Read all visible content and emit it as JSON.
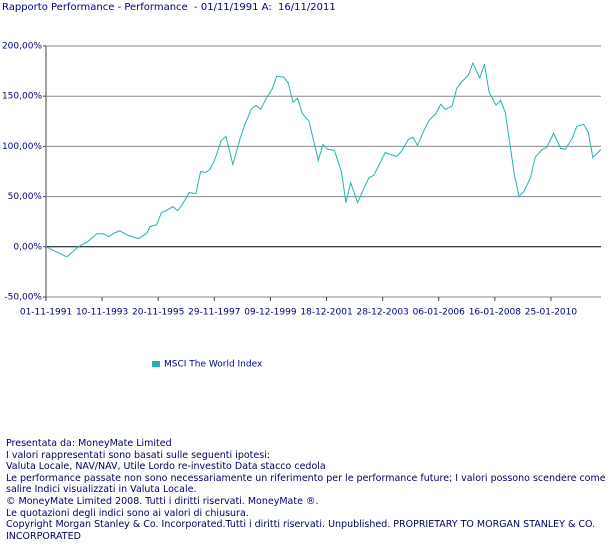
{
  "chart_data": {
    "type": "line",
    "title": "Rapporto Performance - Performance  - 01/11/1991 A:  16/11/2011",
    "x": [
      "1991-11-01",
      "1992-08-01",
      "1993-01-01",
      "1993-05-01",
      "1993-09-01",
      "1993-12-01",
      "1994-02-01",
      "1994-05-01",
      "1994-07-01",
      "1994-10-01",
      "1995-03-01",
      "1995-07-01",
      "1995-08-01",
      "1995-11-01",
      "1996-01-01",
      "1996-03-01",
      "1996-06-01",
      "1996-08-01",
      "1996-10-01",
      "1997-01-01",
      "1997-04-01",
      "1997-06-01",
      "1997-08-01",
      "1997-10-01",
      "1997-12-01",
      "1998-03-01",
      "1998-05-01",
      "1998-08-01",
      "1998-11-01",
      "1999-01-01",
      "1999-04-01",
      "1999-06-01",
      "1999-08-01",
      "1999-11-01",
      "2000-01-01",
      "2000-03-01",
      "2000-06-01",
      "2000-08-01",
      "2000-10-01",
      "2000-12-01",
      "2001-02-01",
      "2001-05-01",
      "2001-09-01",
      "2001-11-01",
      "2002-01-01",
      "2002-04-01",
      "2002-07-01",
      "2002-09-01",
      "2002-11-01",
      "2003-02-01",
      "2003-04-01",
      "2003-07-01",
      "2003-09-01",
      "2003-11-01",
      "2004-02-01",
      "2004-04-01",
      "2004-07-01",
      "2004-09-01",
      "2004-12-01",
      "2005-02-01",
      "2005-04-01",
      "2005-07-01",
      "2005-09-01",
      "2005-12-01",
      "2006-02-01",
      "2006-04-01",
      "2006-07-01",
      "2006-09-01",
      "2006-11-01",
      "2007-02-01",
      "2007-04-01",
      "2007-07-01",
      "2007-09-01",
      "2007-11-01",
      "2008-02-01",
      "2008-04-01",
      "2008-06-01",
      "2008-10-01",
      "2008-12-01",
      "2009-02-01",
      "2009-05-01",
      "2009-07-01",
      "2009-10-01",
      "2009-12-01",
      "2010-03-01",
      "2010-06-01",
      "2010-08-01",
      "2010-11-01",
      "2011-01-01",
      "2011-04-01",
      "2011-06-01",
      "2011-08-01",
      "2011-11-16"
    ],
    "series": [
      {
        "name": "MSCI The World Index",
        "color": "#22b2b2",
        "values": [
          0,
          -10,
          0,
          5,
          13,
          13,
          10,
          14,
          16,
          12,
          8,
          14,
          20,
          22,
          34,
          36,
          40,
          36,
          42,
          54,
          53,
          75,
          74,
          77,
          86,
          106,
          110,
          82,
          107,
          121,
          137,
          141,
          137,
          150,
          157,
          170,
          169,
          163,
          144,
          148,
          133,
          125,
          86,
          102,
          97,
          96,
          75,
          44,
          64,
          44,
          54,
          69,
          71,
          80,
          94,
          92,
          90,
          95,
          107,
          109,
          101,
          117,
          126,
          133,
          142,
          137,
          140,
          158,
          164,
          171,
          183,
          168,
          182,
          154,
          141,
          146,
          134,
          71,
          50,
          55,
          69,
          89,
          97,
          99,
          113,
          98,
          97,
          108,
          120,
          122,
          114,
          89,
          97
        ]
      }
    ],
    "xlim": [
      "1991-11-01",
      "2011-11-16"
    ],
    "xticks": [
      {
        "value": "1991-11-01",
        "label": "01-11-1991"
      },
      {
        "value": "1993-11-10",
        "label": "10-11-1993"
      },
      {
        "value": "1995-11-20",
        "label": "20-11-1995"
      },
      {
        "value": "1997-11-29",
        "label": "29-11-1997"
      },
      {
        "value": "1999-12-09",
        "label": "09-12-1999"
      },
      {
        "value": "2001-12-18",
        "label": "18-12-2001"
      },
      {
        "value": "2003-12-28",
        "label": "28-12-2003"
      },
      {
        "value": "2006-01-06",
        "label": "06-01-2006"
      },
      {
        "value": "2008-01-16",
        "label": "16-01-2008"
      },
      {
        "value": "2010-01-25",
        "label": "25-01-2010"
      }
    ],
    "ylim": [
      -50,
      200
    ],
    "yticks": [
      {
        "value": -50,
        "label": "-50,00%"
      },
      {
        "value": 0,
        "label": "0,00%"
      },
      {
        "value": 50,
        "label": "50,00%"
      },
      {
        "value": 100,
        "label": "100,00%"
      },
      {
        "value": 150,
        "label": "150,00%"
      },
      {
        "value": 200,
        "label": "200,00%"
      }
    ],
    "grid": true
  },
  "footer": [
    "Presentata da: MoneyMate Limited",
    "I valori rappresentati sono basati sulle seguenti ipotesi:",
    "Valuta Locale, NAV/NAV, Utile Lordo re-investito Data stacco cedola",
    "Le performance passate non sono necessariamente un riferimento per le performance future; I valori possono scendere come salire Indici visualizzati in Valuta Locale.",
    "© MoneyMate Limited 2008. Tutti i diritti riservati. MoneyMate ®.",
    "Le quotazioni degli indici sono ai valori di chiusura.",
    "Copyright Morgan Stanley & Co. Incorporated.Tutti i diritti riservati. Unpublished. PROPRIETARY TO MORGAN STANLEY & CO. INCORPORATED"
  ]
}
